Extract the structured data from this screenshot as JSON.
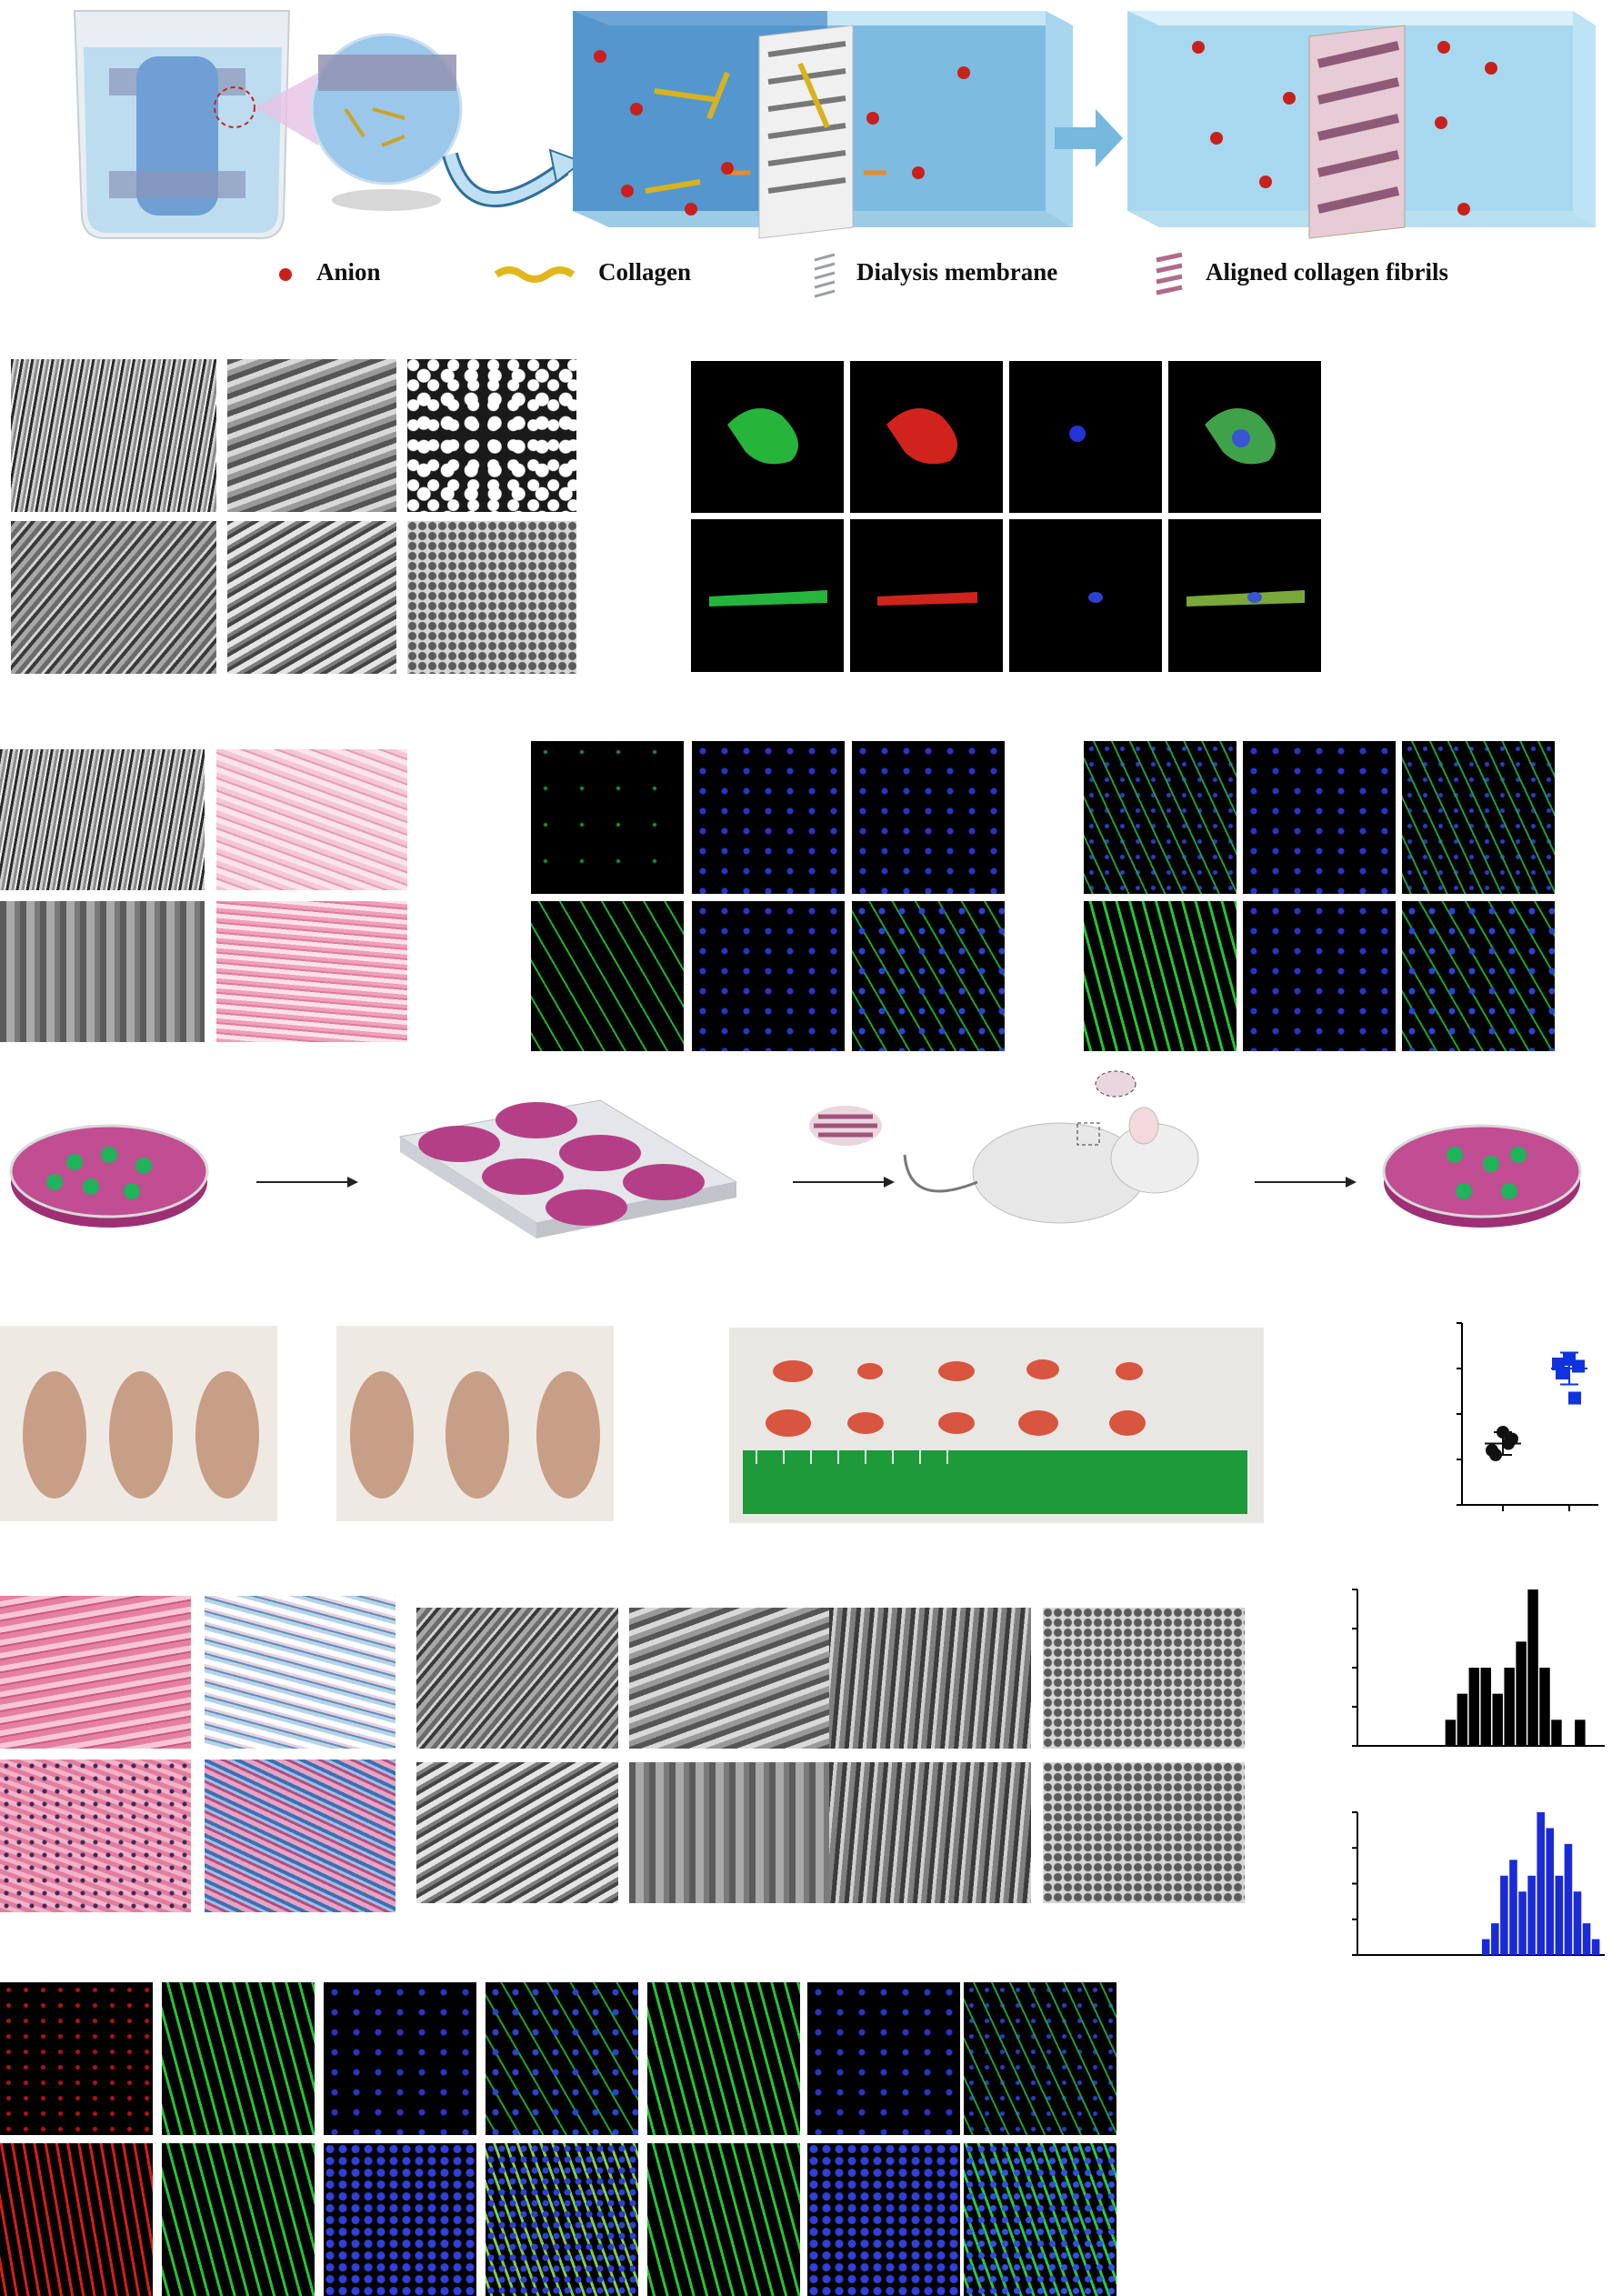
{
  "legend": {
    "anion": "Anion",
    "collagen": "Collagen",
    "dialysis_membrane": "Dialysis membrane",
    "aligned_fibrils": "Aligned collagen fibrils"
  },
  "colors": {
    "anion": "#c8201c",
    "collagen": "#e0b81e",
    "membrane": "#9aa0a6",
    "aligned_fibrils": "#b06a8a",
    "tank_blue": "#5aa9d6",
    "dish_magenta": "#b2357f",
    "cell_green": "#1fb35a",
    "scatter_black": "#111111",
    "scatter_blue": "#1133dd",
    "hist_black": "#000000",
    "hist_blue": "#1a2bd6",
    "ruler_green": "#1e9a3a"
  },
  "icons": [
    "beaker-icon",
    "magnifier-bubble-icon",
    "curved-arrow-icon",
    "right-arrow-icon",
    "mouse-icon",
    "petri-dish-icon",
    "well-plate-icon",
    "ruler-icon"
  ],
  "chart_data": [
    {
      "type": "scatter",
      "categories": [
        "",
        ""
      ],
      "series": [
        {
          "values": [
            1.2,
            1.45,
            1.6,
            1.1,
            1.35
          ]
        },
        {
          "values": [
            3.1,
            3.05,
            3.2,
            2.9,
            2.35
          ]
        }
      ],
      "means": [
        1.35,
        3.0
      ],
      "errors": [
        0.25,
        0.35
      ],
      "ylim": [
        0,
        4
      ],
      "yticks": 5
    },
    {
      "type": "bar",
      "values": [
        0,
        0,
        0,
        0,
        0,
        0,
        0,
        1,
        2,
        3,
        3,
        2,
        3,
        4,
        6,
        3,
        1,
        0,
        1,
        0
      ],
      "ylim": [
        0,
        6
      ],
      "yticks": 5
    },
    {
      "type": "bar",
      "values": [
        0,
        0,
        0,
        0,
        0,
        0,
        0,
        0,
        0,
        0,
        0,
        0,
        0,
        1,
        2,
        5,
        6,
        4,
        5,
        9,
        8,
        5,
        7,
        4,
        2,
        1
      ],
      "ylim": [
        0,
        9
      ],
      "yticks": 5
    }
  ]
}
